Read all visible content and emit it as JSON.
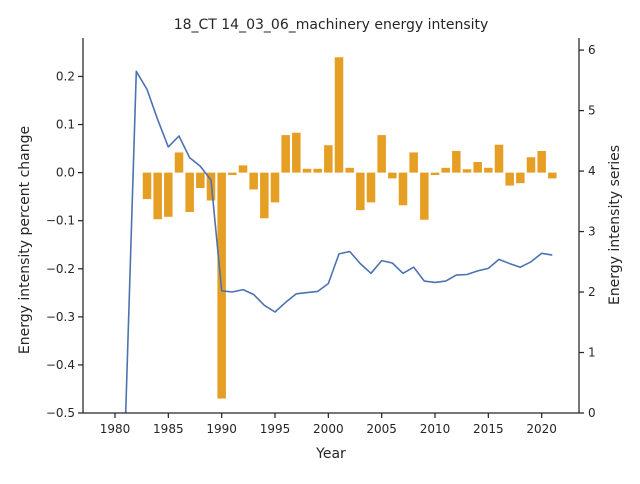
{
  "chart_data": {
    "type": "bar+line",
    "title": "18_CT 14_03_06_machinery energy intensity",
    "xlabel": "Year",
    "ylabel_left": "Energy intensity percent change",
    "ylabel_right": "Energy intensity series",
    "xlim": [
      1977,
      2023.5
    ],
    "ylim_left": [
      -0.5,
      0.28
    ],
    "ylim_right": [
      0,
      6.2
    ],
    "x_ticks": [
      1980,
      1985,
      1990,
      1995,
      2000,
      2005,
      2010,
      2015,
      2020
    ],
    "y_left_ticks": [
      -0.5,
      -0.4,
      -0.3,
      -0.2,
      -0.1,
      0.0,
      0.1,
      0.2
    ],
    "y_left_tick_labels": [
      "−0.5",
      "−0.4",
      "−0.3",
      "−0.2",
      "−0.1",
      "0.0",
      "0.1",
      "0.2"
    ],
    "y_right_ticks": [
      0,
      1,
      2,
      3,
      4,
      5,
      6
    ],
    "grid": false,
    "legend": "none",
    "series": [
      {
        "kind": "bar",
        "axis": "left",
        "color": "#e69f25",
        "x": [
          1983,
          1984,
          1985,
          1986,
          1987,
          1988,
          1989,
          1990,
          1991,
          1992,
          1993,
          1994,
          1995,
          1996,
          1997,
          1998,
          1999,
          2000,
          2001,
          2002,
          2003,
          2004,
          2005,
          2006,
          2007,
          2008,
          2009,
          2010,
          2011,
          2012,
          2013,
          2014,
          2015,
          2016,
          2017,
          2018,
          2019,
          2020,
          2021
        ],
        "values": [
          -0.055,
          -0.097,
          -0.092,
          0.042,
          -0.082,
          -0.032,
          -0.058,
          -0.47,
          -0.005,
          0.015,
          -0.035,
          -0.095,
          -0.062,
          0.078,
          0.083,
          0.008,
          0.008,
          0.057,
          0.24,
          0.01,
          -0.078,
          -0.062,
          0.078,
          -0.012,
          -0.068,
          0.042,
          -0.098,
          -0.005,
          0.01,
          0.045,
          0.007,
          0.022,
          0.01,
          0.058,
          -0.027,
          -0.022,
          0.032,
          0.045,
          -0.012
        ]
      },
      {
        "kind": "line",
        "axis": "right",
        "color": "#4c72b0",
        "x": [
          1981,
          1982,
          1983,
          1984,
          1985,
          1986,
          1987,
          1988,
          1989,
          1990,
          1991,
          1992,
          1993,
          1994,
          1995,
          1996,
          1997,
          1998,
          1999,
          2000,
          2001,
          2002,
          2003,
          2004,
          2005,
          2006,
          2007,
          2008,
          2009,
          2010,
          2011,
          2012,
          2013,
          2014,
          2015,
          2016,
          2017,
          2018,
          2019,
          2020,
          2021
        ],
        "values": [
          0,
          5.65,
          5.35,
          4.85,
          4.4,
          4.58,
          4.22,
          4.08,
          3.85,
          2.02,
          2.0,
          2.04,
          1.96,
          1.78,
          1.67,
          1.83,
          1.97,
          1.99,
          2.01,
          2.14,
          2.63,
          2.67,
          2.47,
          2.31,
          2.52,
          2.48,
          2.31,
          2.41,
          2.18,
          2.16,
          2.18,
          2.28,
          2.29,
          2.35,
          2.39,
          2.54,
          2.47,
          2.41,
          2.5,
          2.64,
          2.61
        ]
      }
    ]
  }
}
